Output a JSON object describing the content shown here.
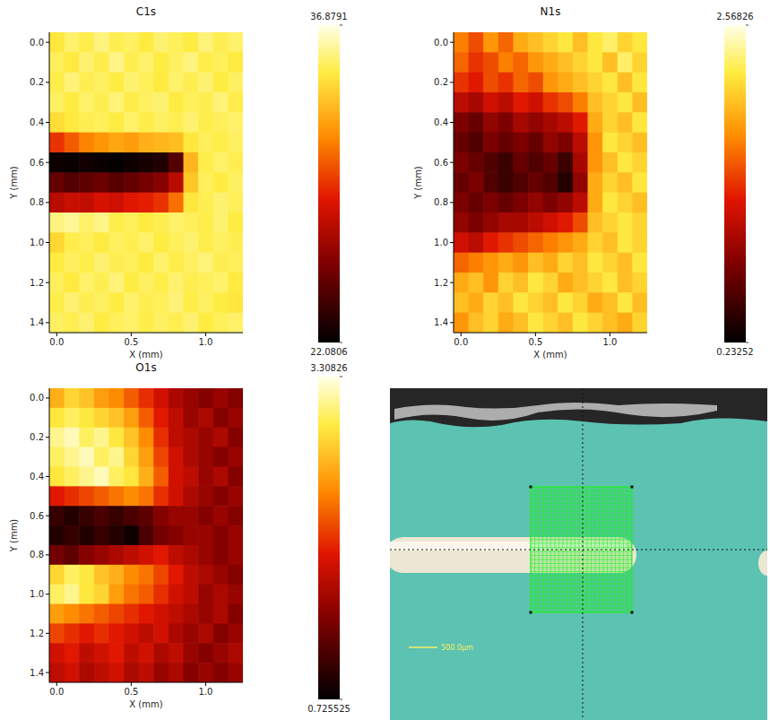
{
  "chart_data": [
    {
      "type": "heatmap",
      "title": "C1s",
      "xlabel": "X (mm)",
      "ylabel": "Y (mm)",
      "xlim": [
        -0.05,
        1.25
      ],
      "ylim": [
        -0.05,
        1.45
      ],
      "xticks": [
        {
          "value": 0,
          "label": "0.0"
        },
        0.5,
        {
          "value": 1,
          "label": "1.0"
        }
      ],
      "yticks": [
        {
          "value": 0,
          "label": "0.0"
        },
        0.2,
        0.4,
        0.6,
        0.8,
        {
          "value": 1,
          "label": "1.0"
        },
        1.2,
        1.4
      ],
      "x": [
        0,
        0.1,
        0.2,
        0.3,
        0.4,
        0.5,
        0.6,
        0.7,
        0.8,
        0.9,
        1.0,
        1.1,
        1.2
      ],
      "y": [
        0,
        0.1,
        0.2,
        0.3,
        0.4,
        0.5,
        0.6,
        0.7,
        0.8,
        0.9,
        1.0,
        1.1,
        1.2,
        1.3,
        1.4
      ],
      "cells": [
        [
          34.5,
          35.2,
          34.8,
          35.5,
          34.9,
          35.1,
          34.6,
          35.3,
          35.0,
          34.7,
          35.4,
          34.9,
          35.2
        ],
        [
          35.0,
          34.6,
          35.3,
          34.8,
          35.6,
          34.9,
          35.2,
          34.7,
          35.1,
          35.5,
          34.8,
          35.0,
          34.6
        ],
        [
          34.8,
          35.4,
          34.9,
          35.1,
          34.7,
          35.3,
          35.0,
          34.6,
          35.2,
          34.9,
          35.3,
          34.7,
          35.1
        ],
        [
          35.1,
          34.7,
          35.2,
          34.9,
          35.4,
          34.8,
          35.1,
          35.3,
          34.7,
          35.0,
          34.9,
          35.4,
          34.8
        ],
        [
          34.2,
          34.6,
          34.9,
          35.0,
          34.7,
          35.2,
          34.8,
          35.1,
          34.9,
          35.3,
          34.8,
          35.0,
          35.2
        ],
        [
          29.5,
          30.5,
          31.5,
          32.0,
          32.5,
          32.2,
          32.8,
          33.0,
          33.2,
          34.5,
          35.0,
          34.8,
          35.1
        ],
        [
          22.5,
          22.3,
          22.6,
          22.4,
          22.2,
          22.5,
          22.8,
          23.0,
          24.5,
          33.0,
          34.8,
          35.2,
          34.9
        ],
        [
          25.0,
          24.5,
          24.8,
          25.2,
          24.6,
          25.0,
          25.5,
          26.0,
          27.5,
          33.5,
          35.0,
          34.7,
          35.1
        ],
        [
          27.5,
          28.0,
          27.8,
          28.5,
          28.2,
          28.8,
          29.0,
          29.5,
          31.0,
          34.5,
          34.9,
          35.3,
          35.0
        ],
        [
          35.5,
          35.8,
          35.2,
          35.6,
          34.8,
          35.0,
          34.6,
          34.9,
          35.2,
          35.0,
          34.8,
          35.3,
          34.7
        ],
        [
          34.0,
          34.8,
          35.0,
          34.6,
          35.1,
          34.9,
          35.2,
          34.7,
          35.0,
          35.3,
          34.8,
          35.1,
          34.9
        ],
        [
          34.7,
          35.1,
          34.8,
          35.3,
          34.9,
          35.0,
          34.6,
          35.2,
          34.8,
          35.1,
          35.4,
          34.9,
          35.0
        ],
        [
          35.0,
          34.6,
          35.2,
          34.9,
          35.4,
          34.7,
          35.1,
          34.8,
          35.3,
          34.9,
          35.0,
          35.2,
          34.6
        ],
        [
          34.8,
          35.3,
          34.9,
          35.1,
          34.7,
          35.2,
          34.9,
          35.0,
          35.4,
          34.8,
          35.1,
          34.7,
          34.5
        ],
        [
          35.1,
          34.9,
          35.3,
          34.7,
          35.0,
          35.2,
          34.8,
          35.1,
          34.9,
          35.3,
          34.7,
          35.0,
          35.2
        ]
      ],
      "colorbar": {
        "range": [
          22.0806,
          36.8791
        ],
        "ticks": [
          22.0806,
          36.8791
        ]
      }
    },
    {
      "type": "heatmap",
      "title": "N1s",
      "xlabel": "X (mm)",
      "ylabel": "Y (mm)",
      "xlim": [
        -0.05,
        1.25
      ],
      "ylim": [
        -0.05,
        1.45
      ],
      "xticks": [
        {
          "value": 0,
          "label": "0.0"
        },
        0.5,
        {
          "value": 1,
          "label": "1.0"
        }
      ],
      "yticks": [
        {
          "value": 0,
          "label": "0.0"
        },
        0.2,
        0.4,
        0.6,
        0.8,
        {
          "value": 1,
          "label": "1.0"
        },
        1.2,
        1.4
      ],
      "x": [
        0,
        0.1,
        0.2,
        0.3,
        0.4,
        0.5,
        0.6,
        0.7,
        0.8,
        0.9,
        1.0,
        1.1,
        1.2
      ],
      "y": [
        0,
        0.1,
        0.2,
        0.3,
        0.4,
        0.5,
        0.6,
        0.7,
        0.8,
        0.9,
        1.0,
        1.1,
        1.2,
        1.3,
        1.4
      ],
      "cells": [
        [
          1.7,
          1.5,
          1.8,
          1.6,
          1.9,
          2.0,
          2.1,
          2.2,
          2.0,
          2.2,
          2.3,
          2.1,
          2.2
        ],
        [
          1.6,
          1.4,
          1.5,
          1.7,
          1.6,
          1.8,
          1.9,
          2.0,
          2.1,
          2.2,
          2.0,
          2.3,
          2.1
        ],
        [
          1.4,
          1.3,
          1.5,
          1.4,
          1.6,
          1.5,
          1.8,
          1.9,
          2.0,
          2.1,
          2.2,
          2.0,
          2.2
        ],
        [
          1.1,
          1.0,
          1.2,
          1.1,
          1.3,
          1.2,
          1.4,
          1.5,
          1.7,
          2.0,
          2.1,
          2.2,
          2.0
        ],
        [
          0.8,
          0.7,
          0.9,
          0.8,
          1.0,
          0.9,
          1.0,
          1.1,
          1.3,
          1.9,
          2.1,
          2.0,
          2.2
        ],
        [
          0.7,
          0.6,
          0.8,
          0.7,
          0.8,
          0.7,
          0.9,
          0.8,
          1.1,
          1.8,
          2.2,
          2.1,
          2.0
        ],
        [
          0.8,
          0.7,
          0.6,
          0.5,
          0.7,
          0.6,
          0.7,
          0.5,
          1.0,
          1.8,
          2.0,
          2.2,
          2.1
        ],
        [
          0.7,
          0.8,
          0.6,
          0.5,
          0.6,
          0.7,
          0.6,
          0.4,
          0.9,
          1.9,
          2.1,
          2.0,
          2.2
        ],
        [
          0.8,
          0.7,
          0.8,
          0.7,
          0.8,
          0.9,
          0.8,
          0.9,
          1.1,
          1.9,
          2.2,
          2.1,
          2.0
        ],
        [
          0.9,
          0.8,
          0.9,
          1.0,
          1.0,
          1.1,
          1.2,
          1.3,
          1.5,
          2.0,
          2.1,
          2.2,
          2.1
        ],
        [
          1.2,
          1.1,
          1.3,
          1.4,
          1.5,
          1.6,
          1.7,
          1.8,
          1.9,
          2.1,
          2.0,
          2.2,
          2.1
        ],
        [
          1.6,
          1.7,
          1.8,
          1.9,
          1.8,
          2.0,
          1.9,
          2.1,
          2.0,
          2.2,
          2.1,
          2.0,
          2.2
        ],
        [
          1.9,
          2.0,
          1.8,
          2.1,
          2.0,
          2.2,
          2.1,
          1.9,
          2.0,
          2.1,
          2.2,
          2.0,
          2.1
        ],
        [
          2.0,
          1.9,
          2.1,
          2.0,
          2.2,
          2.1,
          2.0,
          2.2,
          2.1,
          1.9,
          2.0,
          2.2,
          2.0
        ],
        [
          1.8,
          2.0,
          2.1,
          1.9,
          2.0,
          2.2,
          2.1,
          2.0,
          2.2,
          2.1,
          2.0,
          1.9,
          2.1
        ]
      ],
      "colorbar": {
        "range": [
          0.23252,
          2.56826
        ],
        "ticks": [
          0.23252,
          2.56826
        ]
      }
    },
    {
      "type": "heatmap",
      "title": "O1s",
      "xlabel": "X (mm)",
      "ylabel": "Y (mm)",
      "xlim": [
        -0.05,
        1.25
      ],
      "ylim": [
        -0.05,
        1.45
      ],
      "xticks": [
        {
          "value": 0,
          "label": "0.0"
        },
        0.5,
        {
          "value": 1,
          "label": "1.0"
        }
      ],
      "yticks": [
        {
          "value": 0,
          "label": "0.0"
        },
        0.2,
        0.4,
        0.6,
        0.8,
        {
          "value": 1,
          "label": "1.0"
        },
        1.2,
        1.4
      ],
      "x": [
        0,
        0.1,
        0.2,
        0.3,
        0.4,
        0.5,
        0.6,
        0.7,
        0.8,
        0.9,
        1.0,
        1.1,
        1.2
      ],
      "y": [
        0,
        0.1,
        0.2,
        0.3,
        0.4,
        0.5,
        0.6,
        0.7,
        0.8,
        0.9,
        1.0,
        1.1,
        1.2,
        1.3,
        1.4
      ],
      "cells": [
        [
          2.6,
          2.8,
          2.7,
          2.5,
          2.4,
          2.2,
          2.0,
          1.8,
          1.6,
          1.5,
          1.4,
          1.5,
          1.4
        ],
        [
          2.9,
          3.0,
          2.9,
          2.8,
          2.7,
          2.5,
          2.2,
          1.9,
          1.7,
          1.5,
          1.6,
          1.4,
          1.5
        ],
        [
          3.1,
          3.2,
          3.0,
          3.1,
          2.9,
          2.7,
          2.4,
          2.0,
          1.7,
          1.6,
          1.5,
          1.6,
          1.4
        ],
        [
          3.0,
          3.1,
          3.2,
          3.0,
          3.1,
          2.8,
          2.5,
          2.1,
          1.8,
          1.6,
          1.5,
          1.4,
          1.5
        ],
        [
          2.9,
          3.0,
          3.1,
          3.2,
          3.0,
          2.9,
          2.6,
          2.2,
          1.8,
          1.7,
          1.5,
          1.6,
          1.4
        ],
        [
          1.9,
          2.0,
          2.1,
          2.2,
          2.3,
          2.4,
          2.3,
          2.0,
          1.8,
          1.6,
          1.5,
          1.4,
          1.5
        ],
        [
          1.0,
          0.9,
          1.0,
          1.1,
          1.0,
          1.1,
          1.2,
          1.4,
          1.5,
          1.5,
          1.4,
          1.5,
          1.4
        ],
        [
          0.9,
          1.0,
          0.9,
          1.0,
          0.9,
          0.8,
          1.1,
          1.3,
          1.4,
          1.5,
          1.5,
          1.4,
          1.5
        ],
        [
          1.3,
          1.2,
          1.4,
          1.5,
          1.6,
          1.7,
          1.8,
          1.9,
          1.7,
          1.6,
          1.5,
          1.4,
          1.5
        ],
        [
          2.8,
          3.0,
          2.9,
          2.7,
          2.6,
          2.4,
          2.3,
          2.1,
          1.9,
          1.7,
          1.6,
          1.5,
          1.4
        ],
        [
          3.0,
          3.1,
          2.9,
          2.8,
          2.5,
          2.3,
          2.2,
          2.0,
          1.8,
          1.7,
          1.5,
          1.6,
          1.5
        ],
        [
          2.5,
          2.4,
          2.3,
          2.2,
          2.1,
          2.0,
          1.9,
          1.8,
          1.7,
          1.6,
          1.5,
          1.6,
          1.4
        ],
        [
          2.1,
          2.0,
          1.9,
          2.0,
          1.9,
          1.8,
          1.7,
          1.8,
          1.6,
          1.5,
          1.6,
          1.4,
          1.5
        ],
        [
          1.8,
          1.9,
          1.7,
          1.8,
          1.9,
          1.7,
          1.8,
          1.6,
          1.7,
          1.5,
          1.4,
          1.5,
          1.6
        ],
        [
          1.7,
          1.8,
          1.6,
          1.7,
          1.8,
          1.6,
          1.7,
          1.5,
          1.6,
          1.4,
          1.5,
          1.4,
          1.5
        ]
      ],
      "colorbar": {
        "range": [
          0.725525,
          3.30826
        ],
        "ticks": [
          0.725525,
          3.30826
        ]
      }
    },
    {
      "type": "image",
      "annotations": [
        "500.0µm"
      ]
    }
  ]
}
